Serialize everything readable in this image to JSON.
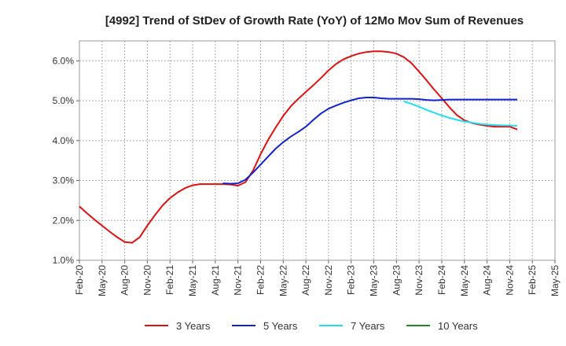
{
  "chart_data": {
    "type": "line",
    "title": "[4992]  Trend of StDev of Growth Rate (YoY) of 12Mo Mov Sum of Revenues",
    "xlabel": "",
    "ylabel": "",
    "ylim": [
      1.0,
      6.5
    ],
    "yticks": [
      1.0,
      2.0,
      3.0,
      4.0,
      5.0,
      6.0
    ],
    "ytick_labels": [
      "1.0%",
      "2.0%",
      "3.0%",
      "4.0%",
      "5.0%",
      "6.0%"
    ],
    "xtick_labels": [
      "Feb-20",
      "May-20",
      "Aug-20",
      "Nov-20",
      "Feb-21",
      "May-21",
      "Aug-21",
      "Nov-21",
      "Feb-22",
      "May-22",
      "Aug-22",
      "Nov-22",
      "Feb-23",
      "May-23",
      "Aug-23",
      "Nov-23",
      "Feb-24",
      "May-24",
      "Aug-24",
      "Nov-24",
      "Feb-25",
      "May-25"
    ],
    "grid": true,
    "legend_position": "bottom",
    "x_start": "Feb-20",
    "series": [
      {
        "name": "3 Years",
        "color": "#dd1111",
        "start_index": 0,
        "values": [
          2.35,
          2.18,
          2.02,
          1.87,
          1.72,
          1.58,
          1.46,
          1.44,
          1.58,
          1.87,
          2.13,
          2.37,
          2.56,
          2.7,
          2.81,
          2.88,
          2.91,
          2.91,
          2.91,
          2.91,
          2.9,
          2.87,
          2.96,
          3.25,
          3.66,
          4.02,
          4.33,
          4.62,
          4.86,
          5.05,
          5.22,
          5.39,
          5.57,
          5.76,
          5.92,
          6.04,
          6.12,
          6.18,
          6.22,
          6.24,
          6.24,
          6.22,
          6.18,
          6.09,
          5.94,
          5.73,
          5.51,
          5.28,
          5.06,
          4.84,
          4.64,
          4.51,
          4.44,
          4.4,
          4.37,
          4.35,
          4.35,
          4.35,
          4.28
        ]
      },
      {
        "name": "5 Years",
        "color": "#1122cc",
        "start_index": 19,
        "values": [
          2.93,
          2.92,
          2.93,
          3.02,
          3.2,
          3.4,
          3.6,
          3.8,
          3.96,
          4.1,
          4.22,
          4.35,
          4.52,
          4.68,
          4.8,
          4.88,
          4.95,
          5.01,
          5.06,
          5.08,
          5.08,
          5.06,
          5.05,
          5.05,
          5.05,
          5.05,
          5.04,
          5.02,
          5.01,
          5.02,
          5.03,
          5.03,
          5.03,
          5.03,
          5.03,
          5.03,
          5.03,
          5.03,
          5.03,
          5.03
        ]
      },
      {
        "name": "7 Years",
        "color": "#22ddee",
        "start_index": 43,
        "values": [
          4.98,
          4.92,
          4.85,
          4.77,
          4.7,
          4.63,
          4.57,
          4.52,
          4.48,
          4.45,
          4.42,
          4.4,
          4.39,
          4.38,
          4.38,
          4.37
        ]
      },
      {
        "name": "10 Years",
        "color": "#228822",
        "start_index": 0,
        "values": []
      }
    ]
  }
}
